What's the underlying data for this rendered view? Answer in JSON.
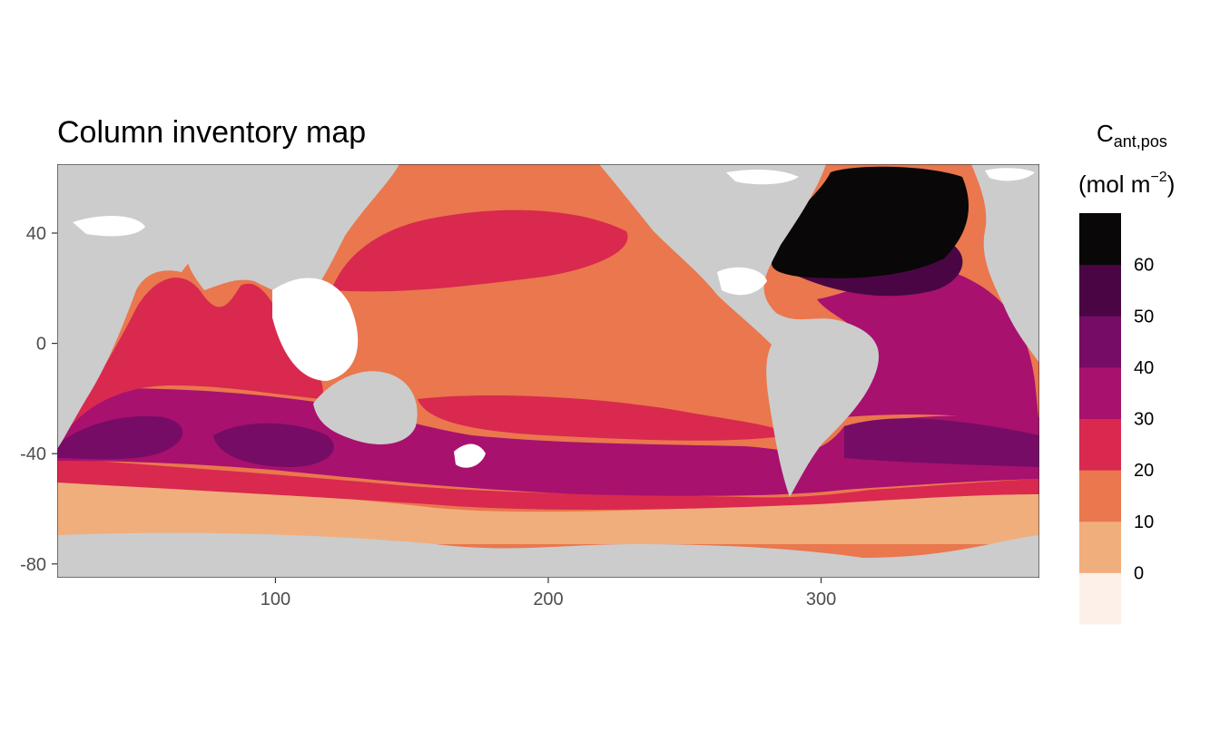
{
  "chart_data": {
    "type": "heatmap",
    "title": "Column inventory map",
    "x_ticks": [
      "100",
      "200",
      "300"
    ],
    "x_tick_values": [
      100,
      200,
      300
    ],
    "y_ticks": [
      "40",
      "0",
      "-40",
      "-80"
    ],
    "y_tick_values": [
      40,
      0,
      -40,
      -80
    ],
    "xlim": [
      20,
      380
    ],
    "ylim": [
      -85,
      65
    ],
    "legend": {
      "title_main": "C",
      "title_sub": "ant,pos",
      "units_prefix": "(mol m",
      "units_sup": "−2",
      "units_suffix": ")",
      "labels": [
        "60",
        "50",
        "40",
        "30",
        "20",
        "10",
        "0"
      ],
      "breaks": [
        60,
        50,
        40,
        30,
        20,
        10,
        0
      ],
      "bins": [
        {
          "range": [
            -10,
            0
          ],
          "color": "#fcf0e8"
        },
        {
          "range": [
            0,
            10
          ],
          "color": "#f0ae7c"
        },
        {
          "range": [
            10,
            20
          ],
          "color": "#ea774d"
        },
        {
          "range": [
            20,
            30
          ],
          "color": "#d9294f"
        },
        {
          "range": [
            30,
            40
          ],
          "color": "#a8116e"
        },
        {
          "range": [
            40,
            50
          ],
          "color": "#760c66"
        },
        {
          "range": [
            50,
            60
          ],
          "color": "#4a0644"
        },
        {
          "range": [
            60,
            70
          ],
          "color": "#090708"
        }
      ]
    },
    "land_color": "#cccccc",
    "missing_color": "#ffffff",
    "grid": false,
    "legend_position": "right"
  }
}
